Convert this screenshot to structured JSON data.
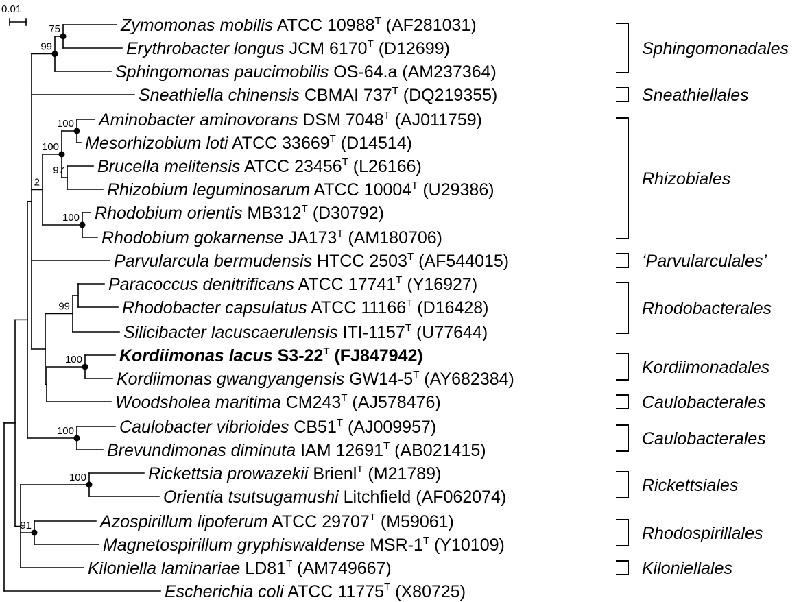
{
  "scale_bar": {
    "label": "0.01"
  },
  "taxa": [
    {
      "name": "Zymomonas mobilis",
      "strain": "ATCC 10988",
      "type_strain": true,
      "accession": "(AF281031)",
      "bold": false
    },
    {
      "name": "Erythrobacter longus",
      "strain": "JCM 6170",
      "type_strain": true,
      "accession": "(D12699)",
      "bold": false
    },
    {
      "name": "Sphingomonas paucimobilis",
      "strain": "OS-64.a",
      "type_strain": false,
      "accession": "(AM237364)",
      "bold": false
    },
    {
      "name": "Sneathiella chinensis",
      "strain": "CBMAI 737",
      "type_strain": true,
      "accession": "(DQ219355)",
      "bold": false
    },
    {
      "name": "Aminobacter aminovorans",
      "strain": "DSM 7048",
      "type_strain": true,
      "accession": "(AJ011759)",
      "bold": false
    },
    {
      "name": "Mesorhizobium loti",
      "strain": "ATCC 33669",
      "type_strain": true,
      "accession": "(D14514)",
      "bold": false
    },
    {
      "name": "Brucella melitensis",
      "strain": "ATCC 23456",
      "type_strain": true,
      "accession": "(L26166)",
      "bold": false
    },
    {
      "name": "Rhizobium leguminosarum",
      "strain": "ATCC 10004",
      "type_strain": true,
      "accession": "(U29386)",
      "bold": false
    },
    {
      "name": "Rhodobium orientis",
      "strain": "MB312",
      "type_strain": true,
      "accession": "(D30792)",
      "bold": false
    },
    {
      "name": "Rhodobium gokarnense",
      "strain": "JA173",
      "type_strain": true,
      "accession": "(AM180706)",
      "bold": false
    },
    {
      "name": "Parvularcula bermudensis",
      "strain": "HTCC 2503",
      "type_strain": true,
      "accession": "(AF544015)",
      "bold": false
    },
    {
      "name": "Paracoccus denitrificans",
      "strain": "ATCC 17741",
      "type_strain": true,
      "accession": "(Y16927)",
      "bold": false
    },
    {
      "name": "Rhodobacter capsulatus",
      "strain": "ATCC 11166",
      "type_strain": true,
      "accession": "(D16428)",
      "bold": false
    },
    {
      "name": "Silicibacter lacuscaerulensis",
      "strain": "ITI-1157",
      "type_strain": true,
      "accession": "(U77644)",
      "bold": false
    },
    {
      "name": "Kordiimonas lacus",
      "strain": "S3-22",
      "type_strain": true,
      "accession": "(FJ847942)",
      "bold": true
    },
    {
      "name": "Kordiimonas gwangyangensis",
      "strain": "GW14-5",
      "type_strain": true,
      "accession": "(AY682384)",
      "bold": false
    },
    {
      "name": "Woodsholea maritima",
      "strain": "CM243",
      "type_strain": true,
      "accession": "(AJ578476)",
      "bold": false
    },
    {
      "name": "Caulobacter vibrioides",
      "strain": "CB51",
      "type_strain": true,
      "accession": "(AJ009957)",
      "bold": false
    },
    {
      "name": "Brevundimonas diminuta",
      "strain": "IAM 12691",
      "type_strain": true,
      "accession": "(AB021415)",
      "bold": false
    },
    {
      "name": "Rickettsia prowazekii",
      "strain": "Brienl",
      "type_strain": true,
      "accession": "(M21789)",
      "bold": false
    },
    {
      "name": "Orientia tsutsugamushi",
      "strain": "Litchfield",
      "type_strain": false,
      "accession": "(AF062074)",
      "bold": false
    },
    {
      "name": "Azospirillum lipoferum",
      "strain": "ATCC 29707",
      "type_strain": true,
      "accession": "(M59061)",
      "bold": false
    },
    {
      "name": "Magnetospirillum gryphiswaldense",
      "strain": "MSR-1",
      "type_strain": true,
      "accession": "(Y10109)",
      "bold": false
    },
    {
      "name": "Kiloniella laminariae",
      "strain": "LD81",
      "type_strain": true,
      "accession": "(AM749667)",
      "bold": false
    },
    {
      "name": "Escherichia coli",
      "strain": "ATCC 11775",
      "type_strain": true,
      "accession": "(X80725)",
      "bold": false
    }
  ],
  "orders": [
    {
      "label": "Sphingomonadales",
      "from": 0,
      "to": 2
    },
    {
      "label": "Sneathiellales",
      "from": 3,
      "to": 3
    },
    {
      "label": "Rhizobiales",
      "from": 4,
      "to": 9
    },
    {
      "label": "‘Parvularculales’",
      "from": 10,
      "to": 10
    },
    {
      "label": "Rhodobacterales",
      "from": 11,
      "to": 13
    },
    {
      "label": "Kordiimonadales",
      "from": 14,
      "to": 15
    },
    {
      "label": "Caulobacterales",
      "from": 16,
      "to": 16
    },
    {
      "label": "Caulobacterales",
      "from": 17,
      "to": 18
    },
    {
      "label": "Rickettsiales",
      "from": 19,
      "to": 20
    },
    {
      "label": "Rhodospirillales",
      "from": 21,
      "to": 22
    },
    {
      "label": "Kiloniellales",
      "from": 23,
      "to": 23
    }
  ],
  "bootstrap": [
    "75",
    "99",
    "100",
    "100",
    "97",
    "100",
    "2",
    "99",
    "100",
    "100",
    "100",
    "91"
  ]
}
